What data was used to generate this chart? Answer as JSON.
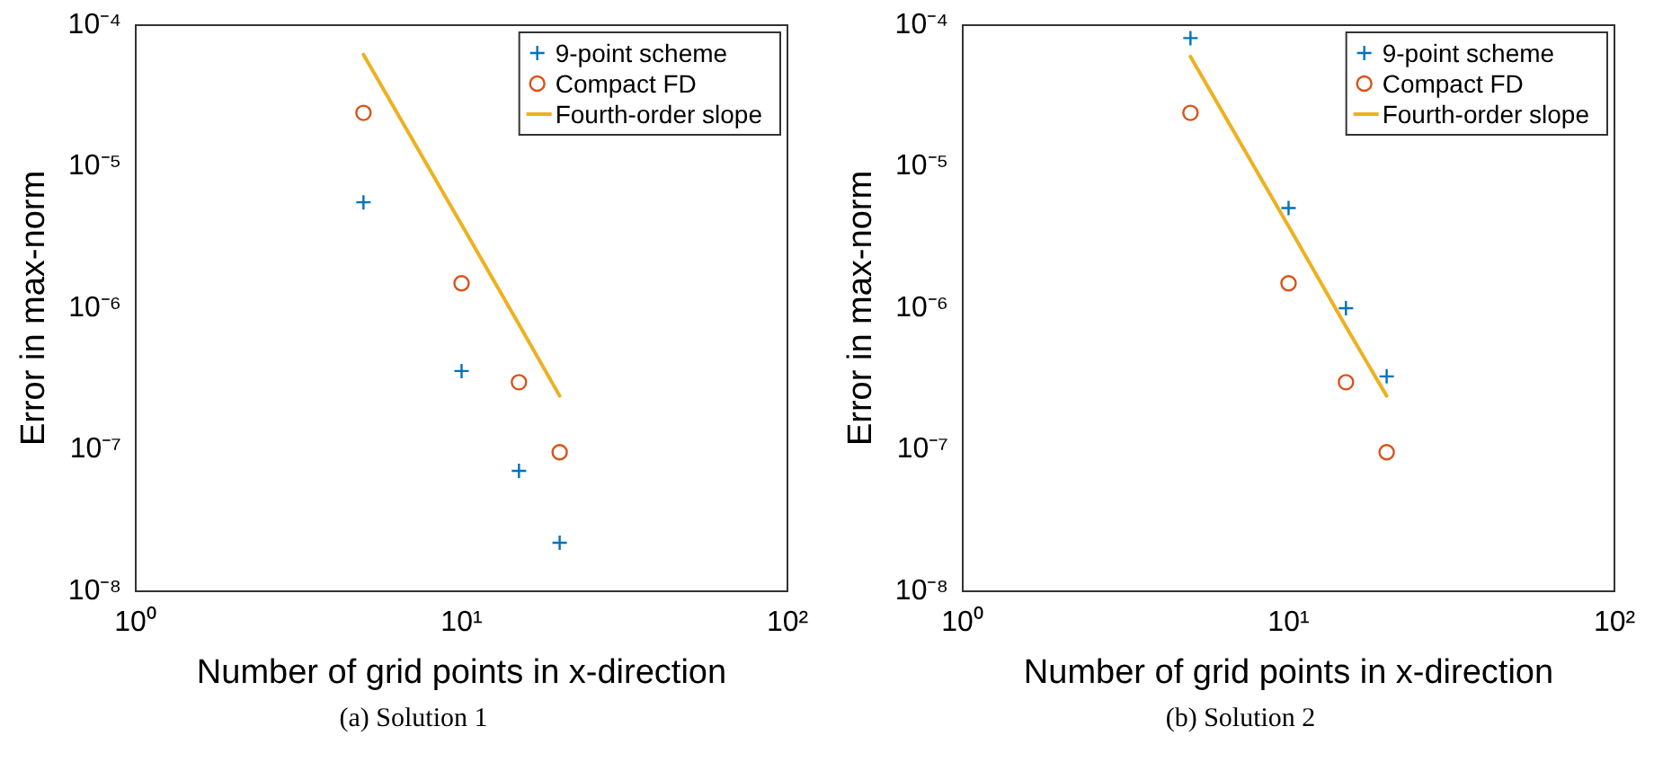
{
  "chart_data": [
    {
      "type": "scatter",
      "xlabel": "Number of grid points in x-direction",
      "ylabel": "Error in max-norm",
      "log": "xy",
      "legend": "top right",
      "grid": false,
      "xlim": [
        1,
        100
      ],
      "xticks": [
        {
          "value": 1,
          "label": "10⁰"
        },
        {
          "value": 10,
          "label": "10¹"
        },
        {
          "value": 100,
          "label": "10²"
        }
      ],
      "ylim": [
        1e-08,
        0.0001
      ],
      "yticks": [
        {
          "value": 1e-08,
          "label": "10⁻⁸"
        },
        {
          "value": 1e-07,
          "label": "10⁻⁷"
        },
        {
          "value": 1e-06,
          "label": "10⁻⁶"
        },
        {
          "value": 1e-05,
          "label": "10⁻⁵"
        },
        {
          "value": 0.0001,
          "label": "10⁻⁴"
        }
      ],
      "x": [
        5,
        10,
        15,
        20
      ],
      "series": [
        {
          "name": "9-point scheme",
          "color": "#0072bd",
          "type": "scatter",
          "marker": "cross",
          "values": [
            5.6e-06,
            3.6e-07,
            7.1e-08,
            2.2e-08
          ]
        },
        {
          "name": "Compact FD",
          "color": "#d95319",
          "type": "scatter",
          "marker": "circle",
          "values": [
            2.4e-05,
            1.5e-06,
            3e-07,
            9.6e-08
          ]
        },
        {
          "name": "Fourth-order slope",
          "color": "#edb120",
          "type": "line",
          "marker": "none",
          "line_style": "solid",
          "values": [
            6.2e-05,
            3.9e-06,
            7.7e-07,
            2.4e-07
          ]
        }
      ],
      "annotations": [
        "(a) Solution 1"
      ]
    },
    {
      "type": "scatter",
      "xlabel": "Number of grid points in x-direction",
      "ylabel": "Error in max-norm",
      "log": "xy",
      "legend": "top right",
      "grid": false,
      "xlim": [
        1,
        100
      ],
      "xticks": [
        {
          "value": 1,
          "label": "10⁰"
        },
        {
          "value": 10,
          "label": "10¹"
        },
        {
          "value": 100,
          "label": "10²"
        }
      ],
      "ylim": [
        1e-08,
        0.0001
      ],
      "yticks": [
        {
          "value": 1e-08,
          "label": "10⁻⁸"
        },
        {
          "value": 1e-07,
          "label": "10⁻⁷"
        },
        {
          "value": 1e-06,
          "label": "10⁻⁶"
        },
        {
          "value": 1e-05,
          "label": "10⁻⁵"
        },
        {
          "value": 0.0001,
          "label": "10⁻⁴"
        }
      ],
      "x": [
        5,
        10,
        15,
        20
      ],
      "series": [
        {
          "name": "9-point scheme",
          "color": "#0072bd",
          "type": "scatter",
          "marker": "cross",
          "values": [
            8.1e-05,
            5.1e-06,
            1e-06,
            3.3e-07
          ]
        },
        {
          "name": "Compact FD",
          "color": "#d95319",
          "type": "scatter",
          "marker": "circle",
          "values": [
            2.4e-05,
            1.5e-06,
            3e-07,
            9.6e-08
          ]
        },
        {
          "name": "Fourth-order slope",
          "color": "#edb120",
          "type": "line",
          "marker": "none",
          "line_style": "solid",
          "values": [
            6e-05,
            3.8e-06,
            7.4e-07,
            2.4e-07
          ]
        }
      ],
      "annotations": [
        "(b) Solution 2"
      ]
    }
  ]
}
